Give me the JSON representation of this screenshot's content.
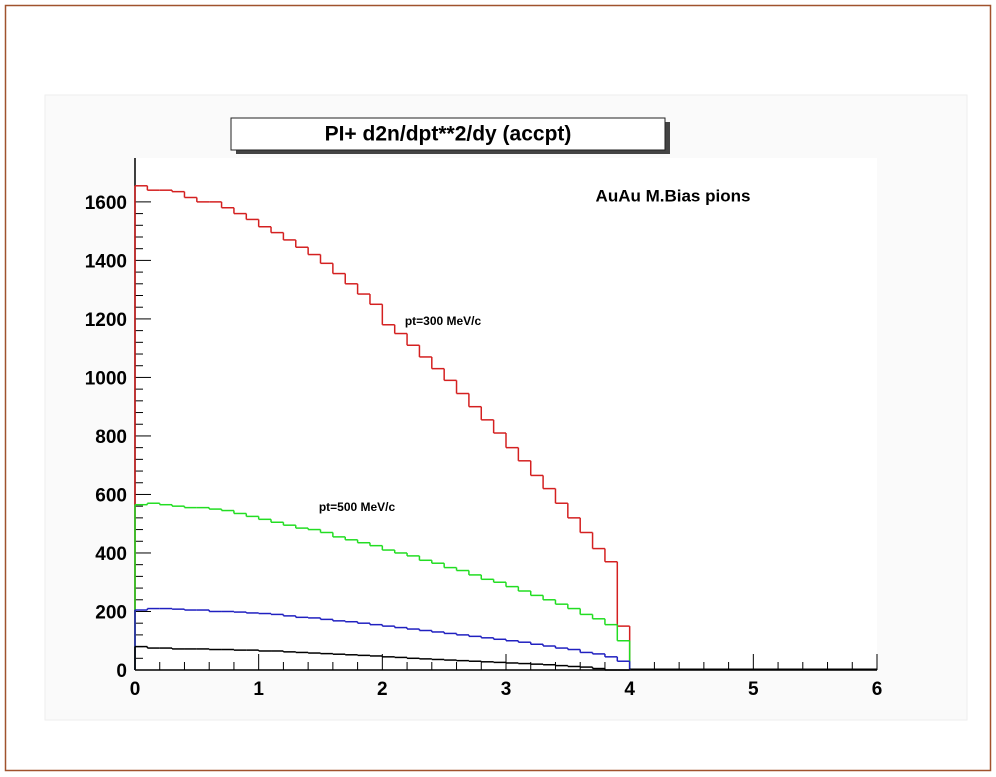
{
  "chart_data": {
    "type": "histogram",
    "title": "PI+ d2n/dpt**2/dy (accpt)",
    "bins": [
      0,
      0.1,
      0.2,
      0.3,
      0.4,
      0.5,
      0.6,
      0.7,
      0.8,
      0.9,
      1,
      1.1,
      1.2,
      1.3,
      1.4,
      1.5,
      1.6,
      1.7,
      1.8,
      1.9,
      2,
      2.1,
      2.2,
      2.3,
      2.4,
      2.5,
      2.6,
      2.7,
      2.8,
      2.9,
      3,
      3.1,
      3.2,
      3.3,
      3.4,
      3.5,
      3.6,
      3.7,
      3.8,
      3.9,
      4
    ],
    "series": [
      {
        "color": "#d42020",
        "values": [
          1655,
          1640,
          1640,
          1635,
          1615,
          1600,
          1600,
          1580,
          1560,
          1540,
          1515,
          1495,
          1470,
          1445,
          1420,
          1390,
          1355,
          1320,
          1285,
          1250,
          1180,
          1150,
          1110,
          1070,
          1030,
          990,
          945,
          900,
          855,
          810,
          760,
          715,
          665,
          620,
          570,
          520,
          470,
          415,
          370,
          150
        ]
      },
      {
        "color": "#22dd22",
        "values": [
          565,
          570,
          565,
          560,
          555,
          555,
          550,
          545,
          535,
          525,
          515,
          505,
          495,
          485,
          480,
          470,
          455,
          445,
          435,
          425,
          410,
          400,
          390,
          375,
          365,
          350,
          340,
          325,
          310,
          300,
          285,
          270,
          255,
          240,
          225,
          210,
          190,
          175,
          155,
          100
        ]
      },
      {
        "color": "#2020c0",
        "values": [
          205,
          210,
          210,
          208,
          205,
          205,
          200,
          200,
          198,
          195,
          193,
          190,
          185,
          180,
          178,
          173,
          168,
          165,
          160,
          155,
          150,
          145,
          140,
          135,
          130,
          125,
          120,
          115,
          110,
          105,
          100,
          95,
          88,
          82,
          75,
          70,
          60,
          55,
          45,
          30
        ]
      },
      {
        "color": "#000000",
        "values": [
          80,
          75,
          75,
          72,
          72,
          72,
          70,
          70,
          68,
          68,
          65,
          65,
          62,
          60,
          58,
          56,
          54,
          52,
          50,
          48,
          45,
          43,
          40,
          38,
          36,
          34,
          32,
          30,
          28,
          26,
          24,
          22,
          20,
          18,
          15,
          12,
          10,
          5,
          0,
          0
        ]
      }
    ],
    "xlim": [
      0,
      6
    ],
    "xticks": [
      0,
      1,
      2,
      3,
      4,
      5,
      6
    ],
    "ylim": [
      0,
      1750
    ],
    "yticks": [
      0,
      200,
      400,
      600,
      800,
      1000,
      1200,
      1400,
      1600
    ],
    "annotations": [
      "AuAu M.Bias pions",
      "pt=300 MeV/c",
      "pt=500 MeV/c"
    ]
  }
}
